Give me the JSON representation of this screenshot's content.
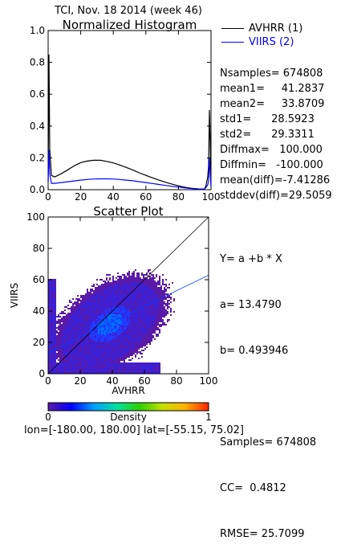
{
  "title": "TCI,  Nov. 18 2014 (week 46)",
  "chart_data": [
    {
      "type": "line",
      "title": "Normalized Histogram",
      "xlim": [
        0,
        100
      ],
      "ylim": [
        0,
        1.0
      ],
      "xticks": [
        "0",
        "20",
        "40",
        "60",
        "80",
        "100"
      ],
      "yticks": [
        "0.0",
        "0.2",
        "0.4",
        "0.6",
        "0.8",
        "1.0"
      ],
      "series": [
        {
          "name": "AVHRR (1)",
          "color": "#000000",
          "x": [
            0,
            0.5,
            1,
            2,
            4,
            8,
            12,
            16,
            20,
            24,
            28,
            32,
            36,
            40,
            44,
            48,
            52,
            56,
            60,
            64,
            68,
            72,
            76,
            80,
            84,
            88,
            92,
            96,
            97,
            98,
            98.5,
            99,
            99.5,
            100
          ],
          "y": [
            0.05,
            0.85,
            0.25,
            0.09,
            0.08,
            0.1,
            0.125,
            0.15,
            0.17,
            0.18,
            0.185,
            0.185,
            0.178,
            0.168,
            0.155,
            0.14,
            0.123,
            0.106,
            0.09,
            0.075,
            0.06,
            0.047,
            0.035,
            0.024,
            0.015,
            0.009,
            0.005,
            0.004,
            0.03,
            0.08,
            0.15,
            0.5,
            0.3,
            0.02
          ]
        },
        {
          "name": "VIIRS (2)",
          "color": "#0000ff",
          "x": [
            0,
            0.5,
            1,
            2,
            4,
            8,
            12,
            16,
            20,
            24,
            28,
            32,
            36,
            40,
            44,
            48,
            52,
            56,
            60,
            64,
            68,
            72,
            76,
            80,
            84,
            88,
            92,
            96,
            97,
            98,
            98.5,
            99,
            99.5,
            100
          ],
          "y": [
            0.05,
            0.25,
            0.1,
            0.04,
            0.04,
            0.045,
            0.05,
            0.055,
            0.06,
            0.064,
            0.067,
            0.068,
            0.068,
            0.067,
            0.064,
            0.06,
            0.056,
            0.05,
            0.045,
            0.039,
            0.033,
            0.027,
            0.021,
            0.016,
            0.011,
            0.007,
            0.005,
            0.004,
            0.015,
            0.03,
            0.06,
            0.2,
            0.1,
            0.02
          ]
        }
      ]
    },
    {
      "type": "scatter",
      "title": "Scatter Plot",
      "xlabel": "AVHRR",
      "ylabel": "VIIRS",
      "xlim": [
        0,
        100
      ],
      "ylim": [
        0,
        100
      ],
      "xticks": [
        "0",
        "20",
        "40",
        "60",
        "80",
        "100"
      ],
      "yticks": [
        "0",
        "20",
        "40",
        "60",
        "80",
        "100"
      ],
      "density_center": [
        38,
        31
      ],
      "density_spread": [
        17,
        15
      ],
      "fit_line": {
        "a": 13.479,
        "b": 0.493946
      },
      "one_to_one_line": true
    }
  ],
  "histogram_stats": [
    "Nsamples= 674808",
    "mean1=     41.2837",
    "mean2=     33.8709",
    "std1=      28.5923",
    "std2=      29.3311",
    "Diffmax=   100.000",
    "Diffmin=   -100.000",
    "mean(diff)=-7.41286",
    "stddev(diff)=29.5059"
  ],
  "regression_stats": {
    "equation": "Y= a +b * X",
    "a": "a= 13.4790",
    "b": "b= 0.493946",
    "samples": "Samples= 674808",
    "cc": "CC=  0.4812",
    "rmse": "RMSE= 25.7099"
  },
  "colorbar": {
    "label": "Density",
    "min": "0",
    "max": "1",
    "colors": [
      "#5a1aa8",
      "#0000ff",
      "#00a0ff",
      "#00e0a0",
      "#30d000",
      "#c8e000",
      "#ffb000",
      "#ff2000"
    ]
  },
  "footer": "lon=[-180.00, 180.00] lat=[-55.15, 75.02]"
}
